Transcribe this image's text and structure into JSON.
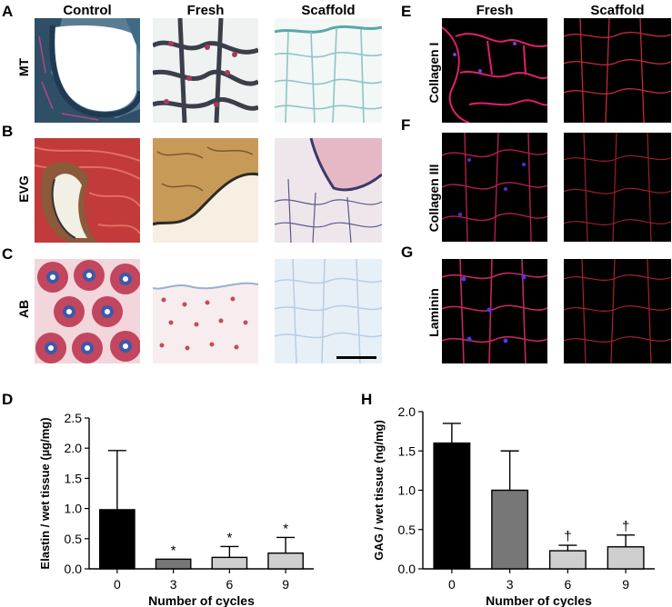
{
  "panel_letters": {
    "A": "A",
    "B": "B",
    "C": "C",
    "D": "D",
    "E": "E",
    "F": "F",
    "G": "G",
    "H": "H"
  },
  "left_columns": [
    "Control",
    "Fresh",
    "Scaffold"
  ],
  "left_rows": [
    "MT",
    "EVG",
    "AB"
  ],
  "right_columns": [
    "Fresh",
    "Scaffold"
  ],
  "right_rows": [
    "Collagen I",
    "Collagen III",
    "Laminin"
  ],
  "chart_data": [
    {
      "type": "bar",
      "panel": "D",
      "xlabel": "Number of cycles",
      "ylabel": "Elastin / wet tissue (µg/mg)",
      "categories": [
        "0",
        "3",
        "6",
        "9"
      ],
      "values": [
        0.98,
        0.16,
        0.19,
        0.26
      ],
      "errors": [
        0.98,
        0.0,
        0.18,
        0.26
      ],
      "annotations": [
        "",
        "*",
        "*",
        "*"
      ],
      "ylim": [
        0,
        2.5
      ],
      "yticks": [
        "0.0",
        "0.5",
        "1.0",
        "1.5",
        "2.0",
        "2.5"
      ],
      "bar_colors": [
        "#000000",
        "#777777",
        "#cfcfcf",
        "#cfcfcf"
      ]
    },
    {
      "type": "bar",
      "panel": "H",
      "xlabel": "Number of cycles",
      "ylabel": "GAG / wet tissue (ng/mg)",
      "categories": [
        "0",
        "3",
        "6",
        "9"
      ],
      "values": [
        1.6,
        1.0,
        0.23,
        0.28
      ],
      "errors": [
        0.25,
        0.5,
        0.07,
        0.15
      ],
      "annotations": [
        "",
        "",
        "†",
        "†"
      ],
      "ylim": [
        0,
        2.0
      ],
      "yticks": [
        "0.0",
        "0.5",
        "1.0",
        "1.5",
        "2.0"
      ],
      "bar_colors": [
        "#000000",
        "#777777",
        "#cfcfcf",
        "#cfcfcf"
      ]
    }
  ]
}
